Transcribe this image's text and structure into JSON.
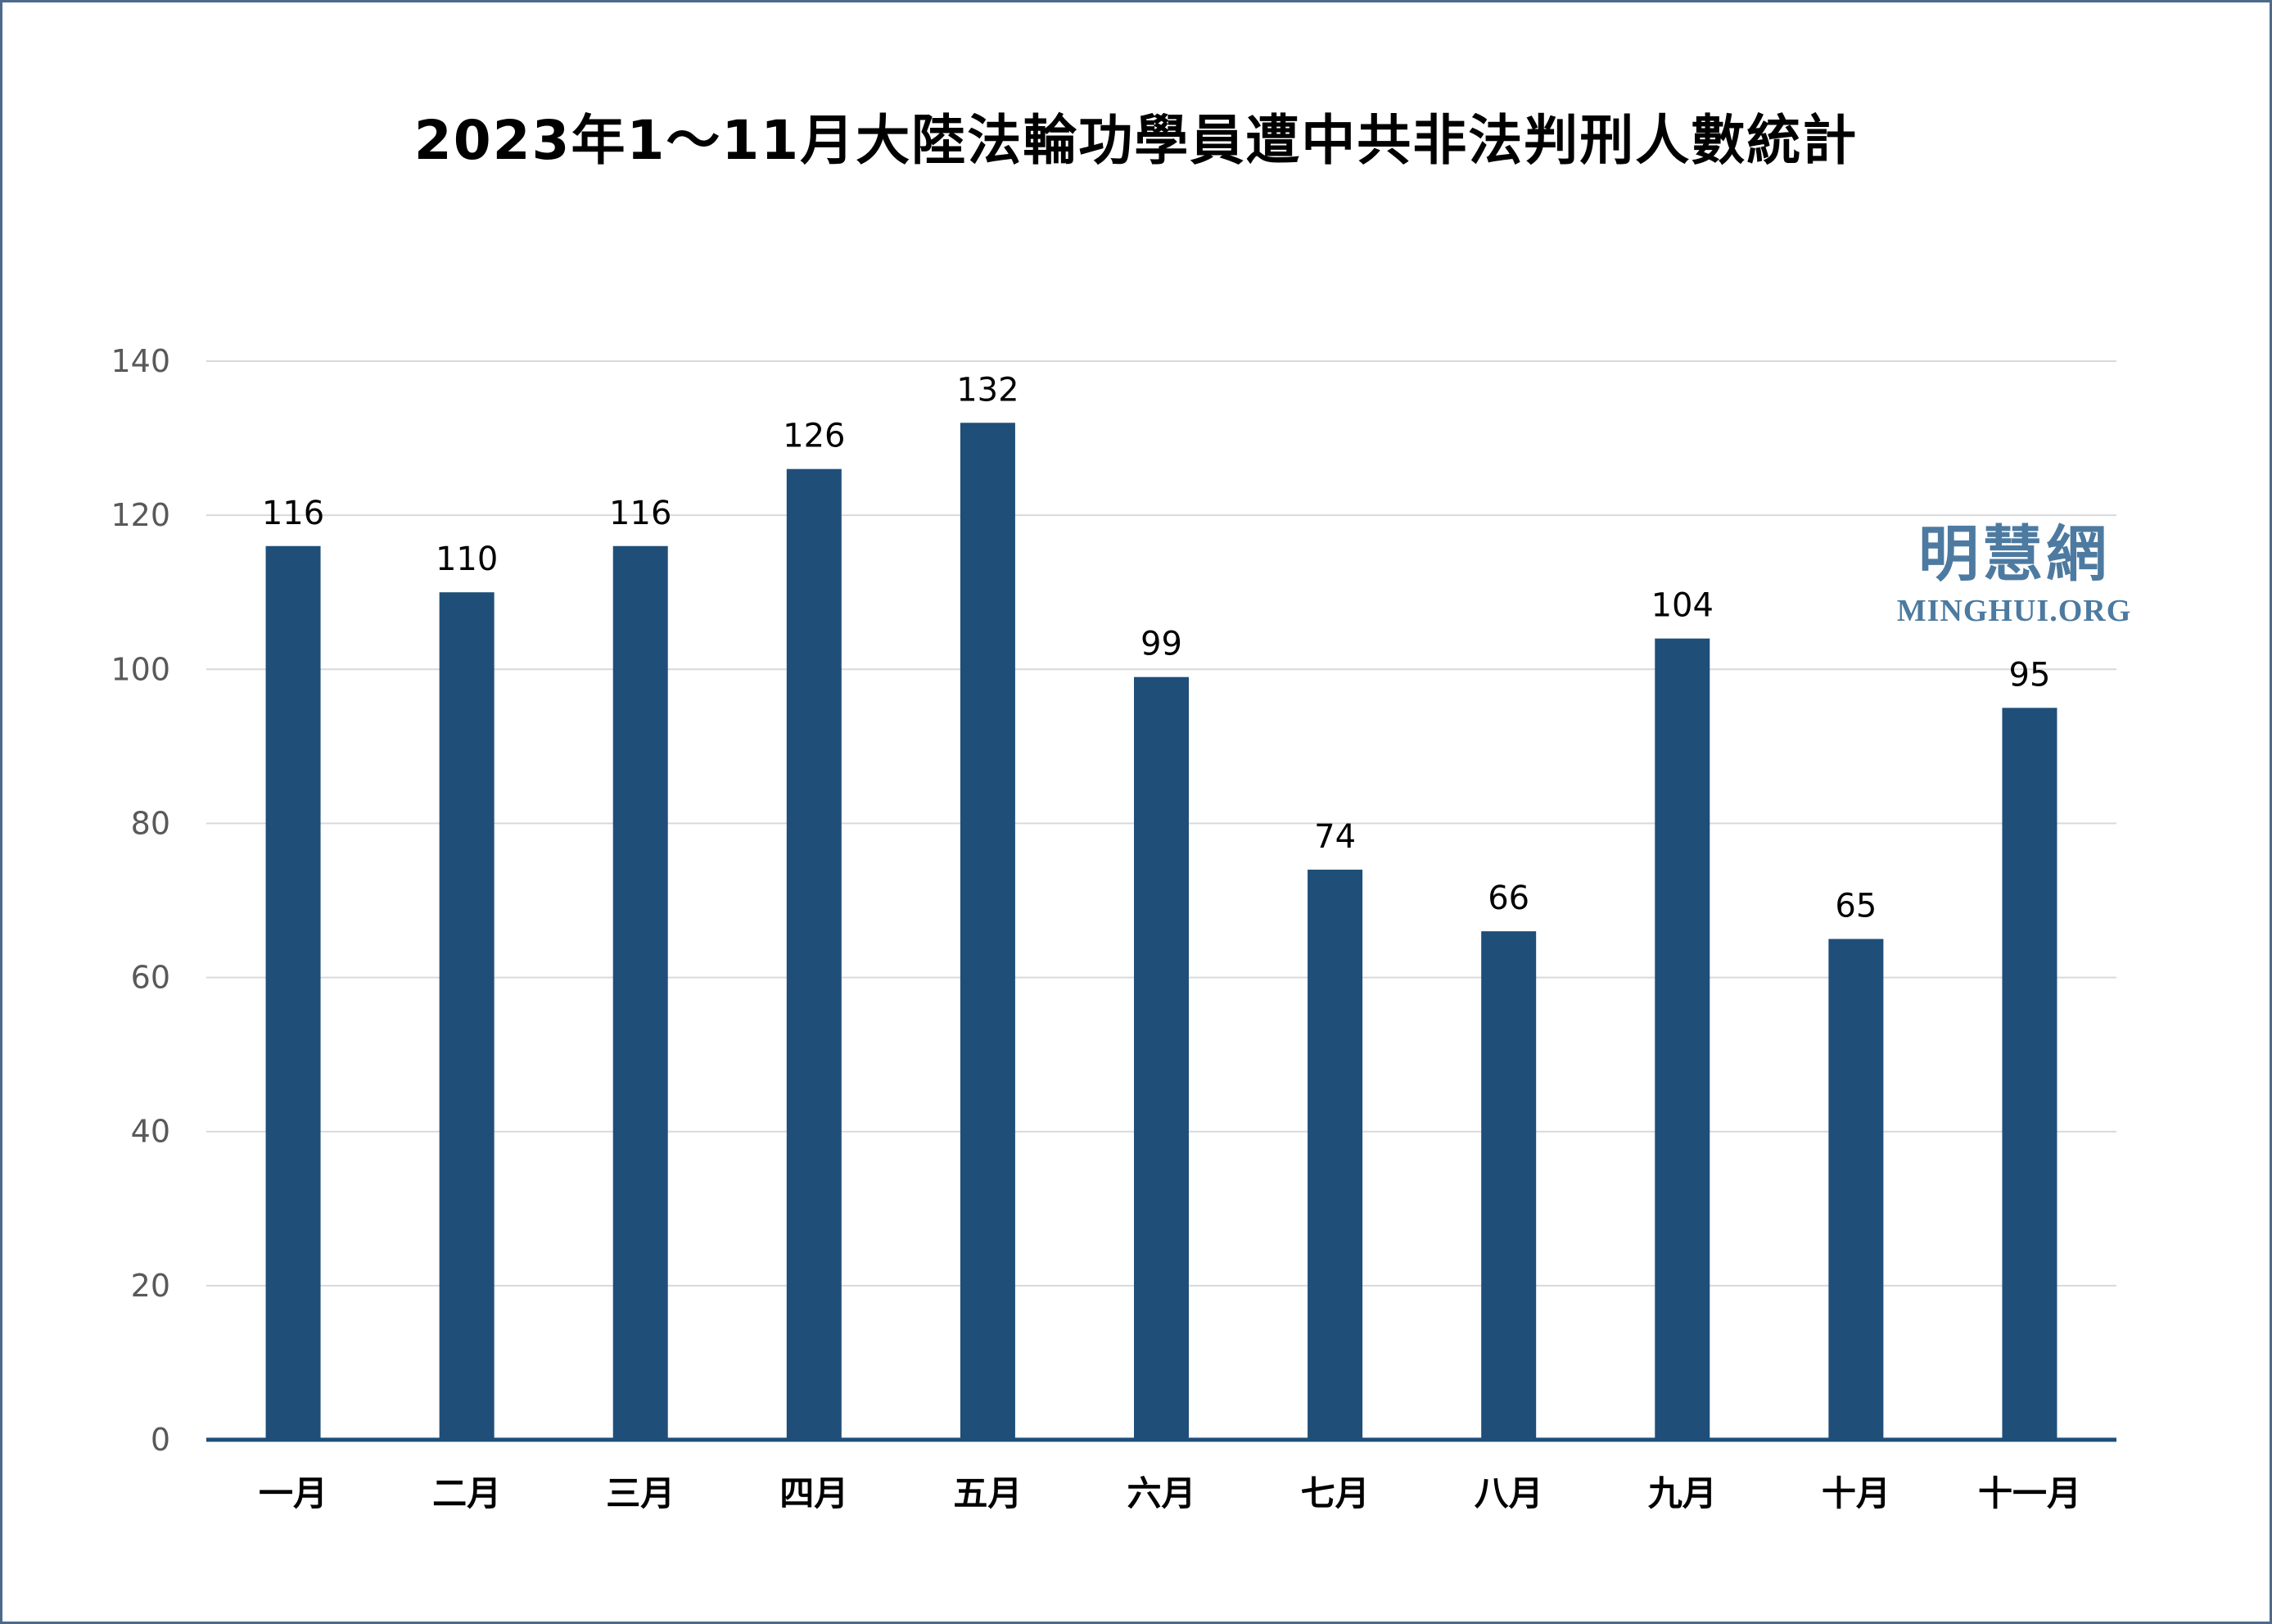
{
  "chart_data": {
    "type": "bar",
    "title": "2023年1～11月大陸法輪功學員遭中共非法判刑人數統計",
    "categories": [
      "一月",
      "二月",
      "三月",
      "四月",
      "五月",
      "六月",
      "七月",
      "八月",
      "九月",
      "十月",
      "十一月"
    ],
    "values": [
      116,
      110,
      116,
      126,
      132,
      99,
      74,
      66,
      104,
      65,
      95
    ],
    "yticks": [
      "0",
      "20",
      "40",
      "60",
      "80",
      "100",
      "120",
      "140"
    ],
    "ylim": [
      0,
      140
    ],
    "xlabel": "",
    "ylabel": "",
    "grid": true,
    "legend": "none",
    "bar_color": "#1f4e79",
    "grid_color": "#d9d9d9"
  },
  "watermark": {
    "cn": "明慧網",
    "en": "MINGHUI.ORG",
    "color": "#4d7aa0"
  }
}
